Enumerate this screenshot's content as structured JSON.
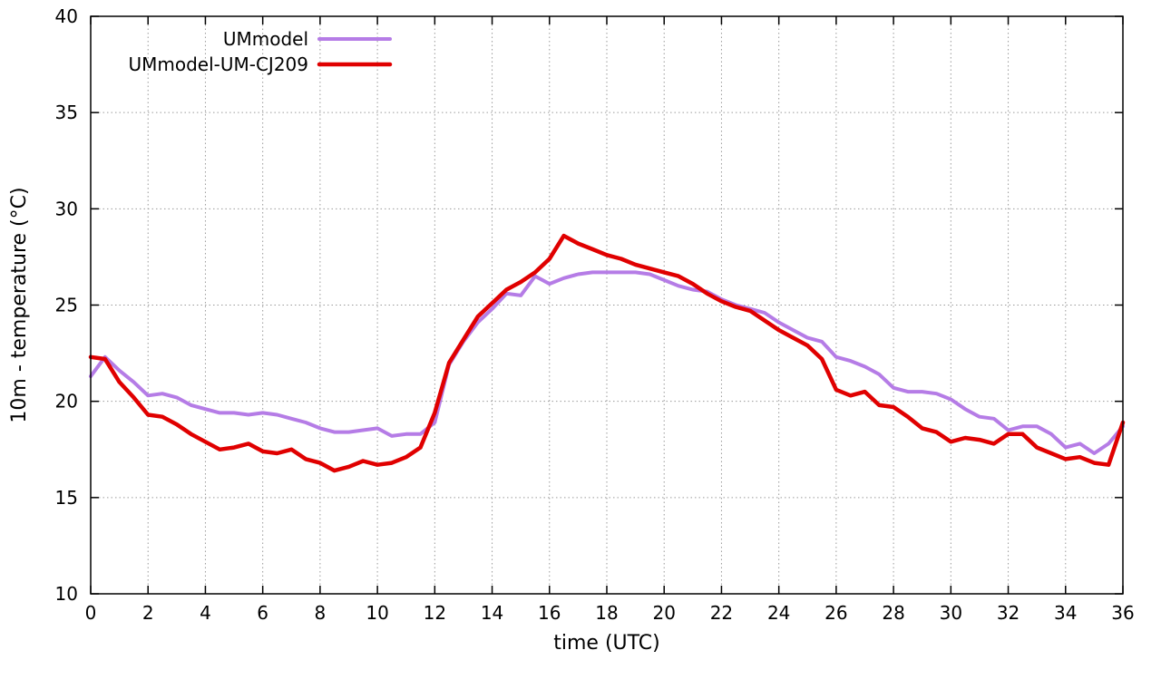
{
  "chart_data": {
    "type": "line",
    "title": "",
    "xlabel": "time (UTC)",
    "ylabel": "10m - temperature (°C)",
    "xlim": [
      0,
      36
    ],
    "ylim": [
      10,
      40
    ],
    "x_ticks": [
      0,
      2,
      4,
      6,
      8,
      10,
      12,
      14,
      16,
      18,
      20,
      22,
      24,
      26,
      28,
      30,
      32,
      34,
      36
    ],
    "y_ticks": [
      10,
      15,
      20,
      25,
      30,
      35,
      40
    ],
    "grid": true,
    "legend_position": "top-left-inside",
    "x": [
      0,
      0.5,
      1,
      1.5,
      2,
      2.5,
      3,
      3.5,
      4,
      4.5,
      5,
      5.5,
      6,
      6.5,
      7,
      7.5,
      8,
      8.5,
      9,
      9.5,
      10,
      10.5,
      11,
      11.5,
      12,
      12.5,
      13,
      13.5,
      14,
      14.5,
      15,
      15.5,
      16,
      16.5,
      17,
      17.5,
      18,
      18.5,
      19,
      19.5,
      20,
      20.5,
      21,
      21.5,
      22,
      22.5,
      23,
      23.5,
      24,
      24.5,
      25,
      25.5,
      26,
      26.5,
      27,
      27.5,
      28,
      28.5,
      29,
      29.5,
      30,
      30.5,
      31,
      31.5,
      32,
      32.5,
      33,
      33.5,
      34,
      34.5,
      35,
      35.5,
      36
    ],
    "series": [
      {
        "name": "UMmodel",
        "color": "#b57ce6",
        "line_width": 4,
        "values": [
          21.3,
          22.3,
          21.6,
          21.0,
          20.3,
          20.4,
          20.2,
          19.8,
          19.6,
          19.4,
          19.4,
          19.3,
          19.4,
          19.3,
          19.1,
          18.9,
          18.6,
          18.4,
          18.4,
          18.5,
          18.6,
          18.2,
          18.3,
          18.3,
          18.9,
          21.9,
          23.1,
          24.1,
          24.8,
          25.6,
          25.5,
          26.5,
          26.1,
          26.4,
          26.6,
          26.7,
          26.7,
          26.7,
          26.7,
          26.6,
          26.3,
          26.0,
          25.8,
          25.7,
          25.3,
          25.0,
          24.8,
          24.6,
          24.1,
          23.7,
          23.3,
          23.1,
          22.3,
          22.1,
          21.8,
          21.4,
          20.7,
          20.5,
          20.5,
          20.4,
          20.1,
          19.6,
          19.2,
          19.1,
          18.5,
          18.7,
          18.7,
          18.3,
          17.6,
          17.8,
          17.3,
          17.8,
          18.7
        ]
      },
      {
        "name": "UMmodel-UM-CJ209",
        "color": "#e00000",
        "line_width": 4.5,
        "values": [
          22.3,
          22.2,
          21.0,
          20.2,
          19.3,
          19.2,
          18.8,
          18.3,
          17.9,
          17.5,
          17.6,
          17.8,
          17.4,
          17.3,
          17.5,
          17.0,
          16.8,
          16.4,
          16.6,
          16.9,
          16.7,
          16.8,
          17.1,
          17.6,
          19.4,
          22.0,
          23.2,
          24.4,
          25.1,
          25.8,
          26.2,
          26.7,
          27.4,
          28.6,
          28.2,
          27.9,
          27.6,
          27.4,
          27.1,
          26.9,
          26.7,
          26.5,
          26.1,
          25.6,
          25.2,
          24.9,
          24.7,
          24.2,
          23.7,
          23.3,
          22.9,
          22.2,
          20.6,
          20.3,
          20.5,
          19.8,
          19.7,
          19.2,
          18.6,
          18.4,
          17.9,
          18.1,
          18.0,
          17.8,
          18.3,
          18.3,
          17.6,
          17.3,
          17.0,
          17.1,
          16.8,
          16.7,
          18.9
        ]
      }
    ],
    "style": {
      "border_color": "#000000",
      "grid_color": "#9a9a9a",
      "background": "#ffffff"
    }
  }
}
